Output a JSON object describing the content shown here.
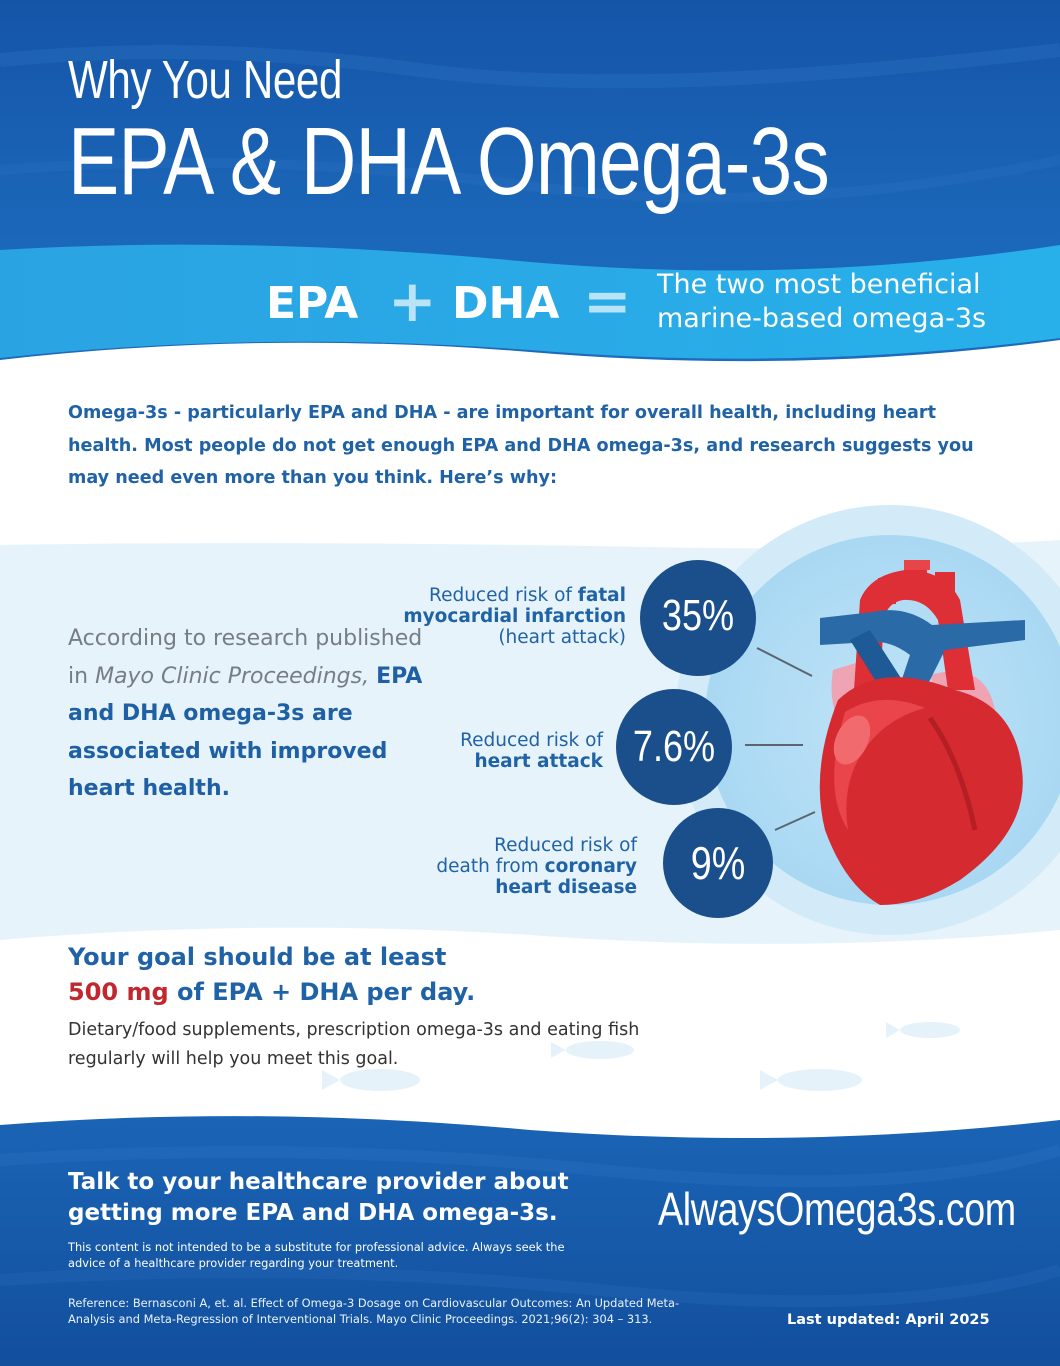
{
  "header": {
    "title_line1": "Why You Need",
    "title_line2": "EPA & DHA Omega-3s"
  },
  "equation": {
    "term1": "EPA",
    "plus": "+",
    "term2": "DHA",
    "equals": "=",
    "result_line1": "The two most beneficial",
    "result_line2": "marine-based omega-3s"
  },
  "intro": {
    "text": "Omega-3s - particularly EPA and DHA - are important for overall health, including heart health. Most people do not get enough EPA and DHA omega-3s, and research suggests you may need even more than you think. Here’s why:"
  },
  "research": {
    "part1": "According to research published in ",
    "journal": "Mayo Clinic Proceedings,",
    "part2": "EPA and DHA omega-3s are associated with improved heart health."
  },
  "stats": [
    {
      "value": "35%",
      "label_plain_1": "Reduced risk of ",
      "label_bold": "fatal myocardial infarction",
      "label_plain_2": "(heart attack)"
    },
    {
      "value": "7.6%",
      "label_plain_1": "Reduced risk of",
      "label_bold": "heart attack",
      "label_plain_2": ""
    },
    {
      "value": "9%",
      "label_plain_1": "Reduced risk of",
      "label_plain_mid": "death from ",
      "label_bold": "coronary",
      "label_bold_2": "heart disease"
    }
  ],
  "goal": {
    "line1": "Your goal should be at least",
    "amount": "500 mg",
    "line2_rest": " of EPA + DHA per day.",
    "subtext": "Dietary/food supplements, prescription omega-3s and eating fish regularly will help you meet this goal."
  },
  "footer": {
    "cta_line1": "Talk to your healthcare provider about",
    "cta_line2": "getting more EPA and DHA omega-3s.",
    "disclaimer": "This content is not intended to be a substitute for professional advice. Always seek the advice of a healthcare provider regarding your treatment.",
    "reference": "Reference: Bernasconi A, et. al. Effect of Omega-3 Dosage on Cardiovascular Outcomes: An Updated Meta-Analysis and Meta-Regression of Interventional Trials. Mayo Clinic Proceedings. 2021;96(2): 304 – 313.",
    "website": "AlwaysOmega3s.com",
    "last_updated": "Last updated: April 2025"
  },
  "colors": {
    "ocean_dark": "#1358a8",
    "ocean_light": "#2ea8e6",
    "circle_navy": "#1a4f8c",
    "text_blue": "#1f62a6",
    "accent_red": "#c1272d",
    "heart_red": "#d42a30"
  }
}
